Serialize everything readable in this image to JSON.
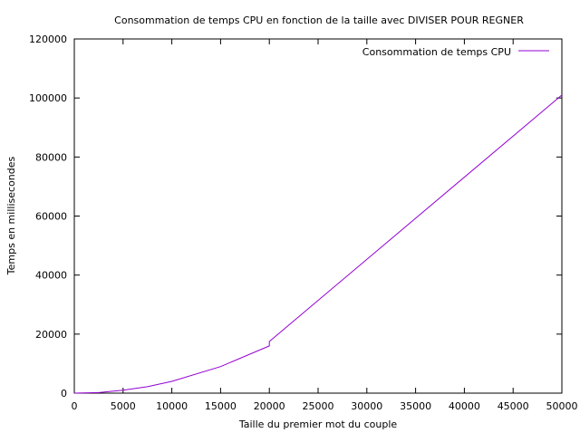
{
  "chart_data": {
    "type": "line",
    "title": "Consommation de temps CPU en fonction de la taille avec DIVISER POUR REGNER",
    "xlabel": "Taille du premier mot du couple",
    "ylabel": "Temps en millisecondes",
    "xlim": [
      0,
      50000
    ],
    "ylim": [
      0,
      120000
    ],
    "xticks": [
      0,
      5000,
      10000,
      15000,
      20000,
      25000,
      30000,
      35000,
      40000,
      45000,
      50000
    ],
    "yticks": [
      0,
      20000,
      40000,
      60000,
      80000,
      100000,
      120000
    ],
    "grid": false,
    "legend_position": "top-right",
    "series": [
      {
        "name": "Consommation de temps CPU",
        "color": "#9400d3",
        "x": [
          0,
          2500,
          5000,
          7500,
          10000,
          15000,
          20000,
          20000,
          50000
        ],
        "y": [
          0,
          200,
          1000,
          2200,
          4000,
          9000,
          16000,
          17500,
          101000
        ]
      }
    ]
  }
}
